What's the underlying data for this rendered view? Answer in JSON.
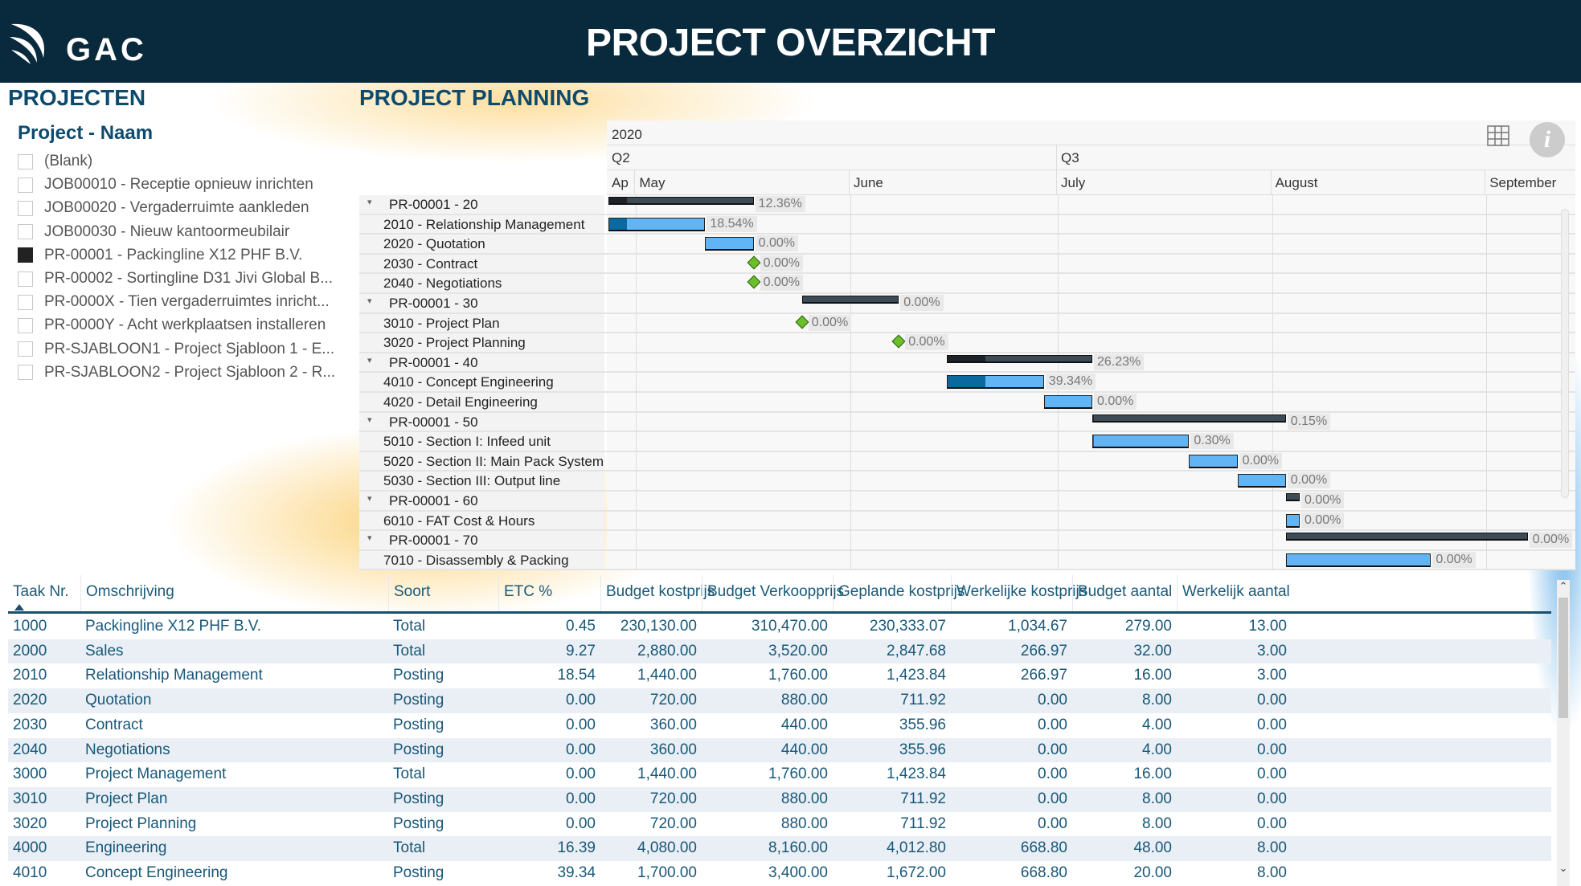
{
  "header": {
    "title": "PROJECT OVERZICHT",
    "logo_text": "GAC"
  },
  "sections": {
    "projects": "PROJECTEN",
    "planning": "PROJECT PLANNING"
  },
  "slicer": {
    "title": "Project - Naam",
    "items": [
      {
        "label": "(Blank)",
        "checked": false
      },
      {
        "label": "JOB00010 - Receptie opnieuw inrichten",
        "checked": false
      },
      {
        "label": "JOB00020 - Vergaderruimte aankleden",
        "checked": false
      },
      {
        "label": "JOB00030 - Nieuw kantoormeubilair",
        "checked": false
      },
      {
        "label": "PR-00001 - Packingline X12 PHF B.V.",
        "checked": true
      },
      {
        "label": "PR-00002 - Sortingline D31 Jivi Global B...",
        "checked": false
      },
      {
        "label": "PR-0000X - Tien vergaderruimtes inricht...",
        "checked": false
      },
      {
        "label": "PR-0000Y - Acht werkplaatsen installeren",
        "checked": false
      },
      {
        "label": "PR-SJABLOON1 - Project Sjabloon 1 - E...",
        "checked": false
      },
      {
        "label": "PR-SJABLOON2 - Project Sjabloon 2 - R...",
        "checked": false
      }
    ]
  },
  "gantt": {
    "year": "2020",
    "domain": [
      "2020-04-27",
      "2020-09-14"
    ],
    "quarters": [
      {
        "label": "Q2",
        "start": "2020-04-01"
      },
      {
        "label": "Q3",
        "start": "2020-07-01"
      }
    ],
    "months": [
      {
        "label": "Ap",
        "start": "2020-04-01"
      },
      {
        "label": "May",
        "start": "2020-05-01"
      },
      {
        "label": "June",
        "start": "2020-06-01"
      },
      {
        "label": "July",
        "start": "2020-07-01"
      },
      {
        "label": "August",
        "start": "2020-08-01"
      },
      {
        "label": "September",
        "start": "2020-09-01"
      }
    ],
    "rows": [
      {
        "label": "PR-00001 - 20",
        "type": "group",
        "start": "2020-04-27",
        "end": "2020-05-18",
        "progress": 12.36,
        "pct": "12.36%"
      },
      {
        "label": "2010 - Relationship Management",
        "type": "task",
        "start": "2020-04-27",
        "end": "2020-05-11",
        "progress": 18.54,
        "pct": "18.54%"
      },
      {
        "label": "2020 - Quotation",
        "type": "task",
        "start": "2020-05-11",
        "end": "2020-05-18",
        "progress": 0,
        "pct": "0.00%"
      },
      {
        "label": "2030 - Contract",
        "type": "milestone",
        "start": "2020-05-18",
        "end": "2020-05-18",
        "progress": 0,
        "pct": "0.00%"
      },
      {
        "label": "2040 - Negotiations",
        "type": "milestone",
        "start": "2020-05-18",
        "end": "2020-05-18",
        "progress": 0,
        "pct": "0.00%"
      },
      {
        "label": "PR-00001 - 30",
        "type": "group",
        "start": "2020-05-25",
        "end": "2020-06-08",
        "progress": 0,
        "pct": "0.00%"
      },
      {
        "label": "3010 - Project Plan",
        "type": "milestone",
        "start": "2020-05-25",
        "end": "2020-05-25",
        "progress": 0,
        "pct": "0.00%"
      },
      {
        "label": "3020 - Project Planning",
        "type": "milestone",
        "start": "2020-06-08",
        "end": "2020-06-08",
        "progress": 0,
        "pct": "0.00%"
      },
      {
        "label": "PR-00001 - 40",
        "type": "group",
        "start": "2020-06-15",
        "end": "2020-07-06",
        "progress": 26.23,
        "pct": "26.23%"
      },
      {
        "label": "4010 - Concept Engineering",
        "type": "task",
        "start": "2020-06-15",
        "end": "2020-06-29",
        "progress": 39.34,
        "pct": "39.34%"
      },
      {
        "label": "4020 - Detail Engineering",
        "type": "task",
        "start": "2020-06-29",
        "end": "2020-07-06",
        "progress": 0,
        "pct": "0.00%"
      },
      {
        "label": "PR-00001 - 50",
        "type": "group",
        "start": "2020-07-06",
        "end": "2020-08-03",
        "progress": 0.15,
        "pct": "0.15%"
      },
      {
        "label": "5010 - Section I: Infeed unit",
        "type": "task",
        "start": "2020-07-06",
        "end": "2020-07-20",
        "progress": 0.3,
        "pct": "0.30%"
      },
      {
        "label": "5020 - Section II: Main Pack System",
        "type": "task",
        "start": "2020-07-20",
        "end": "2020-07-27",
        "progress": 0,
        "pct": "0.00%"
      },
      {
        "label": "5030 - Section III: Output line",
        "type": "task",
        "start": "2020-07-27",
        "end": "2020-08-03",
        "progress": 0,
        "pct": "0.00%"
      },
      {
        "label": "PR-00001 - 60",
        "type": "group",
        "start": "2020-08-03",
        "end": "2020-08-05",
        "progress": 0,
        "pct": "0.00%"
      },
      {
        "label": "6010 - FAT Cost & Hours",
        "type": "task",
        "start": "2020-08-03",
        "end": "2020-08-05",
        "progress": 0,
        "pct": "0.00%"
      },
      {
        "label": "PR-00001 - 70",
        "type": "group",
        "start": "2020-08-03",
        "end": "2020-09-07",
        "progress": 0,
        "pct": "0.00%"
      },
      {
        "label": "7010 - Disassembly & Packing",
        "type": "task",
        "start": "2020-08-03",
        "end": "2020-08-24",
        "progress": 0,
        "pct": "0.00%"
      }
    ]
  },
  "table": {
    "columns": [
      "Taak Nr.",
      "Omschrijving",
      "Soort",
      "ETC %",
      "Budget kostprijs",
      "Budget Verkoopprijs",
      "Geplande kostprijs",
      "Werkelijke kostprijs",
      "Budget aantal",
      "Werkelijk aantal"
    ],
    "rows": [
      [
        "1000",
        "Packingline X12 PHF B.V.",
        "Total",
        "0.45",
        "230,130.00",
        "310,470.00",
        "230,333.07",
        "1,034.67",
        "279.00",
        "13.00"
      ],
      [
        "2000",
        "Sales",
        "Total",
        "9.27",
        "2,880.00",
        "3,520.00",
        "2,847.68",
        "266.97",
        "32.00",
        "3.00"
      ],
      [
        "2010",
        "Relationship Management",
        "Posting",
        "18.54",
        "1,440.00",
        "1,760.00",
        "1,423.84",
        "266.97",
        "16.00",
        "3.00"
      ],
      [
        "2020",
        "Quotation",
        "Posting",
        "0.00",
        "720.00",
        "880.00",
        "711.92",
        "0.00",
        "8.00",
        "0.00"
      ],
      [
        "2030",
        "Contract",
        "Posting",
        "0.00",
        "360.00",
        "440.00",
        "355.96",
        "0.00",
        "4.00",
        "0.00"
      ],
      [
        "2040",
        "Negotiations",
        "Posting",
        "0.00",
        "360.00",
        "440.00",
        "355.96",
        "0.00",
        "4.00",
        "0.00"
      ],
      [
        "3000",
        "Project Management",
        "Total",
        "0.00",
        "1,440.00",
        "1,760.00",
        "1,423.84",
        "0.00",
        "16.00",
        "0.00"
      ],
      [
        "3010",
        "Project Plan",
        "Posting",
        "0.00",
        "720.00",
        "880.00",
        "711.92",
        "0.00",
        "8.00",
        "0.00"
      ],
      [
        "3020",
        "Project Planning",
        "Posting",
        "0.00",
        "720.00",
        "880.00",
        "711.92",
        "0.00",
        "8.00",
        "0.00"
      ],
      [
        "4000",
        "Engineering",
        "Total",
        "16.39",
        "4,080.00",
        "8,160.00",
        "4,012.80",
        "668.80",
        "48.00",
        "8.00"
      ],
      [
        "4010",
        "Concept Engineering",
        "Posting",
        "39.34",
        "1,700.00",
        "3,400.00",
        "1,672.00",
        "668.80",
        "20.00",
        "8.00"
      ]
    ]
  },
  "colors": {
    "header_bg": "#082a3c",
    "accent": "#0e4a6c",
    "task_bar": "#62b5f4",
    "task_progress": "#0a6aa0",
    "summary_bar": "#3c4b56",
    "milestone": "#6bbf2a"
  }
}
